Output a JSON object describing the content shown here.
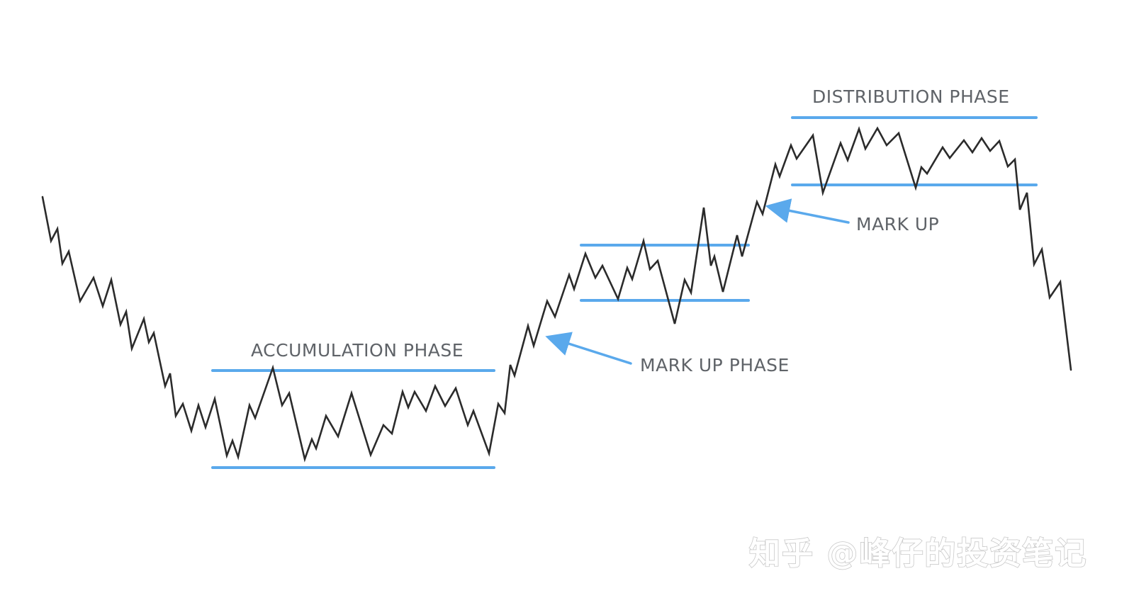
{
  "labels": {
    "accumulation": "ACCUMULATION PHASE",
    "mark_up_phase": "MARK UP PHASE",
    "mark_up": "MARK UP",
    "distribution": "DISTRIBUTION PHASE"
  },
  "watermark": "知乎 @峰仔的投资笔记",
  "colors": {
    "price_line": "#2b2b2b",
    "band": "#5aa9ec",
    "arrow": "#5aa9ec",
    "label": "#5f6368"
  }
}
